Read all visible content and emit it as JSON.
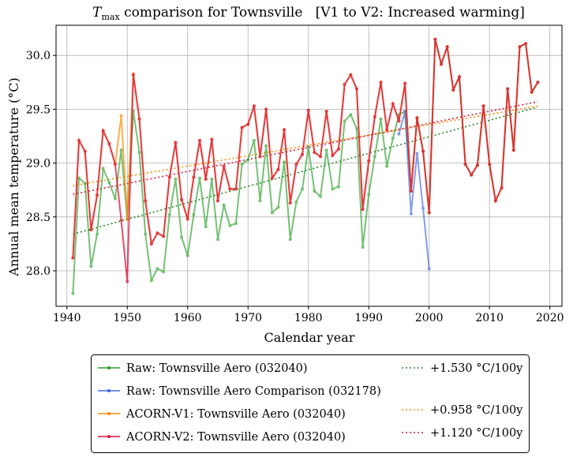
{
  "chart_data": {
    "type": "line",
    "title": "T_max comparison for Townsville   [V1 to V2: Increased warming]",
    "title_parts": {
      "symbol": "T",
      "subscript": "max",
      "rest": " comparison for Townsville   [V1 to V2: Increased warming]"
    },
    "xlabel": "Calendar year",
    "ylabel": "Annual mean temperature (°C)",
    "xlim": [
      1938.2,
      2022
    ],
    "ylim": [
      27.67,
      30.28
    ],
    "xticks": [
      1940,
      1950,
      1960,
      1970,
      1980,
      1990,
      2000,
      2010,
      2020
    ],
    "yticks": [
      28.0,
      28.5,
      29.0,
      29.5,
      30.0
    ],
    "ytick_labels": [
      "28.0",
      "28.5",
      "29.0",
      "29.5",
      "30.0"
    ],
    "grid": true,
    "legend_position": "below-plot",
    "series": [
      {
        "name": "Raw: Townsville Aero (032040)",
        "color": "#2ca02c",
        "style": "line-marker",
        "x": [
          1941,
          1942,
          1943,
          1944,
          1945,
          1946,
          1947,
          1948,
          1949,
          1950,
          1951,
          1952,
          1953,
          1954,
          1955,
          1956,
          1957,
          1958,
          1959,
          1960,
          1961,
          1962,
          1963,
          1964,
          1965,
          1966,
          1967,
          1968,
          1969,
          1970,
          1971,
          1972,
          1973,
          1974,
          1975,
          1976,
          1977,
          1978,
          1979,
          1980,
          1981,
          1982,
          1983,
          1984,
          1985,
          1986,
          1987,
          1988,
          1989,
          1990,
          1991,
          1992,
          1993,
          1994,
          1995,
          1996,
          1997,
          1998,
          1999,
          2000,
          2001,
          2002,
          2003,
          2004,
          2005,
          2006,
          2007,
          2008,
          2009,
          2010,
          2011,
          2012,
          2013,
          2014,
          2015,
          2016,
          2017,
          2018
        ],
        "values": [
          27.79,
          28.86,
          28.81,
          28.04,
          28.34,
          28.95,
          28.82,
          28.67,
          29.12,
          28.48,
          29.48,
          29.1,
          28.34,
          27.91,
          28.02,
          27.99,
          28.52,
          28.85,
          28.31,
          28.14,
          28.52,
          28.86,
          28.41,
          28.85,
          28.29,
          28.61,
          28.42,
          28.44,
          28.99,
          29.03,
          29.21,
          28.65,
          29.16,
          28.54,
          28.59,
          29.01,
          28.29,
          28.64,
          28.76,
          29.15,
          28.74,
          28.69,
          29.12,
          28.76,
          28.78,
          29.39,
          29.45,
          29.32,
          28.22,
          28.71,
          29.06,
          29.41,
          28.97,
          29.23,
          29.45,
          29.48,
          28.74,
          29.42,
          29.11,
          28.54,
          30.15,
          29.92,
          30.08,
          29.68,
          29.8,
          28.99,
          28.89,
          28.98,
          29.53,
          28.99,
          28.65,
          28.77,
          29.69,
          29.12,
          30.08,
          30.11,
          29.66,
          29.75
        ]
      },
      {
        "name": "Raw: Townsville Aero Comparison (032178)",
        "color": "#4169e1",
        "style": "line-marker",
        "x": [
          1995,
          1996,
          1997,
          1998,
          1999,
          2000
        ],
        "values": [
          29.27,
          29.48,
          28.53,
          29.09,
          28.58,
          28.02
        ]
      },
      {
        "name": "ACORN-V1: Townsville Aero (032040)",
        "color": "#ff8c00",
        "style": "line-marker",
        "x": [
          1941,
          1942,
          1943,
          1944,
          1945,
          1946,
          1947,
          1948,
          1949,
          1950,
          1951,
          1952,
          1953,
          1954,
          1955,
          1956,
          1957,
          1958,
          1959,
          1960,
          1961,
          1962,
          1963,
          1964,
          1965,
          1966,
          1967,
          1968,
          1969,
          1970,
          1971,
          1972,
          1973,
          1974,
          1975,
          1976,
          1977,
          1978,
          1979,
          1980,
          1981,
          1982,
          1983,
          1984,
          1985,
          1986,
          1987,
          1988,
          1989,
          1990,
          1991,
          1992,
          1993,
          1994,
          1995,
          1996,
          1997,
          1998,
          1999,
          2000,
          2001,
          2002,
          2003,
          2004,
          2005,
          2006,
          2007,
          2008,
          2009,
          2010,
          2011,
          2012,
          2013,
          2014,
          2015,
          2016,
          2017,
          2018
        ],
        "values": [
          28.12,
          29.21,
          29.11,
          28.38,
          28.7,
          29.3,
          29.18,
          28.99,
          29.44,
          28.48,
          29.83,
          29.41,
          28.65,
          28.25,
          28.35,
          28.32,
          28.87,
          29.19,
          28.66,
          28.48,
          28.87,
          29.21,
          28.85,
          29.22,
          28.65,
          28.97,
          28.76,
          28.76,
          29.33,
          29.36,
          29.53,
          29.06,
          29.5,
          28.86,
          28.94,
          29.31,
          28.63,
          28.99,
          29.08,
          29.49,
          29.1,
          29.06,
          29.48,
          29.07,
          29.13,
          29.73,
          29.82,
          29.69,
          28.57,
          29.02,
          29.43,
          29.75,
          29.31,
          29.55,
          29.39,
          29.74,
          28.74,
          29.42,
          29.11,
          28.54,
          30.15,
          29.92,
          30.08,
          29.68,
          29.8,
          28.99,
          28.89,
          28.98,
          29.53,
          28.99,
          28.65,
          28.77,
          29.69,
          29.12,
          30.08,
          30.11,
          29.66,
          29.75
        ]
      },
      {
        "name": "ACORN-V2: Townsville Aero (032040)",
        "color": "#dc143c",
        "style": "line-marker",
        "x": [
          1941,
          1942,
          1943,
          1944,
          1945,
          1946,
          1947,
          1948,
          1949,
          1950,
          1951,
          1952,
          1953,
          1954,
          1955,
          1956,
          1957,
          1958,
          1959,
          1960,
          1961,
          1962,
          1963,
          1964,
          1965,
          1966,
          1967,
          1968,
          1969,
          1970,
          1971,
          1972,
          1973,
          1974,
          1975,
          1976,
          1977,
          1978,
          1979,
          1980,
          1981,
          1982,
          1983,
          1984,
          1985,
          1986,
          1987,
          1988,
          1989,
          1990,
          1991,
          1992,
          1993,
          1994,
          1995,
          1996,
          1997,
          1998,
          1999,
          2000,
          2001,
          2002,
          2003,
          2004,
          2005,
          2006,
          2007,
          2008,
          2009,
          2010,
          2011,
          2012,
          2013,
          2014,
          2015,
          2016,
          2017,
          2018
        ],
        "values": [
          28.12,
          29.21,
          29.11,
          28.38,
          28.7,
          29.3,
          29.18,
          28.99,
          28.47,
          27.9,
          29.82,
          29.41,
          28.65,
          28.25,
          28.35,
          28.32,
          28.87,
          29.19,
          28.66,
          28.48,
          28.87,
          29.21,
          28.85,
          29.22,
          28.65,
          28.97,
          28.76,
          28.76,
          29.33,
          29.36,
          29.53,
          29.06,
          29.5,
          28.86,
          28.94,
          29.31,
          28.63,
          28.99,
          29.08,
          29.49,
          29.1,
          29.06,
          29.48,
          29.07,
          29.13,
          29.73,
          29.82,
          29.69,
          28.57,
          29.02,
          29.43,
          29.75,
          29.31,
          29.55,
          29.39,
          29.74,
          28.74,
          29.42,
          29.11,
          28.54,
          30.15,
          29.92,
          30.08,
          29.68,
          29.8,
          28.99,
          28.89,
          28.98,
          29.53,
          28.99,
          28.65,
          28.77,
          29.69,
          29.12,
          30.08,
          30.11,
          29.66,
          29.75
        ]
      }
    ],
    "trends": [
      {
        "name": "+1.530 °C/100y",
        "color": "#228b22",
        "style": "dotted",
        "x": [
          1941,
          2018
        ],
        "values": [
          28.34,
          29.52
        ]
      },
      {
        "name": "+0.958 °C/100y",
        "color": "#ff8c00",
        "style": "dotted",
        "x": [
          1941,
          2018
        ],
        "values": [
          28.79,
          29.53
        ]
      },
      {
        "name": "+1.120 °C/100y",
        "color": "#dc143c",
        "style": "dotted",
        "x": [
          1941,
          2018
        ],
        "values": [
          28.71,
          29.57
        ]
      }
    ]
  }
}
